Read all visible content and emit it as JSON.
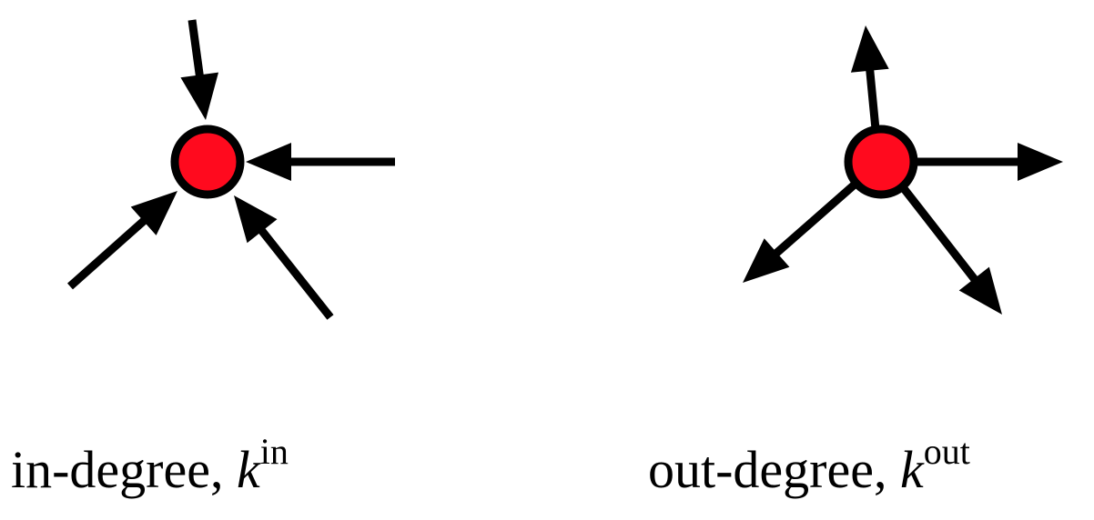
{
  "colors": {
    "node_fill": "#ff0a1e",
    "stroke": "#000000",
    "background": "#ffffff"
  },
  "panels": [
    {
      "id": "in-degree",
      "caption": {
        "text": "in-degree, ",
        "variable": "k",
        "superscript": "in"
      },
      "direction": "incoming",
      "edge_count": 4
    },
    {
      "id": "out-degree",
      "caption": {
        "text": "out-degree, ",
        "variable": "k",
        "superscript": "out"
      },
      "direction": "outgoing",
      "edge_count": 4
    }
  ]
}
